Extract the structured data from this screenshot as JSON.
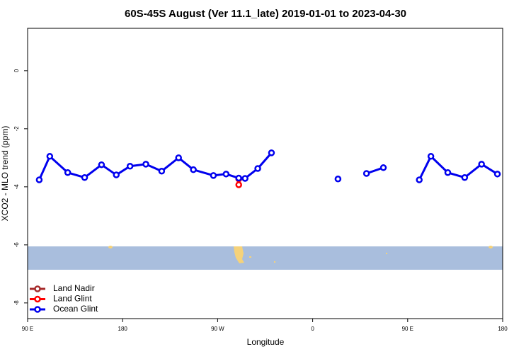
{
  "chart_data": {
    "type": "line",
    "title": "60S-45S August (Ver 11.1_late)   2019-01-01 to 2023-04-30",
    "x_label": "Longitude",
    "y_label": "XCO2 - MLO trend (ppm)",
    "xlim": [
      90,
      540
    ],
    "xticks": [
      {
        "value": 90,
        "label": "90 E"
      },
      180,
      {
        "value": 270,
        "label": "90 W"
      },
      {
        "value": 360,
        "label": "0"
      },
      {
        "value": 450,
        "label": "90 E"
      },
      {
        "value": 540,
        "label": "180"
      }
    ],
    "ylim": [
      -8.54,
      1.46
    ],
    "yticks": [
      0,
      -2,
      -4,
      -6,
      -8
    ],
    "legend": "bottom-left",
    "series": [
      {
        "name": "Land Nadir",
        "color": "#a52a2a",
        "x": [],
        "values": []
      },
      {
        "name": "Land Glint",
        "color": "#ff0000",
        "x": [
          290,
          290
        ],
        "values": [
          -3.73,
          -3.93
        ]
      },
      {
        "name": "Ocean Glint",
        "color": "#0000ee",
        "x": [
          101,
          111,
          128,
          144,
          160,
          174,
          187,
          202,
          217,
          233,
          247,
          266,
          278,
          290,
          296,
          308,
          321,
          350,
          384,
          400,
          411,
          427,
          445,
          461,
          472,
          488,
          504,
          520,
          535
        ],
        "values": [
          -3.76,
          -2.95,
          -3.51,
          -3.68,
          -3.24,
          -3.59,
          -3.29,
          -3.22,
          -3.46,
          -3.0,
          -3.41,
          -3.61,
          -3.56,
          -3.7,
          -3.71,
          -3.37,
          -2.83,
          null,
          -3.73,
          null,
          -3.54,
          -3.34,
          null,
          -3.76,
          -2.95,
          -3.51,
          -3.68,
          -3.22,
          -3.56
        ]
      }
    ]
  }
}
